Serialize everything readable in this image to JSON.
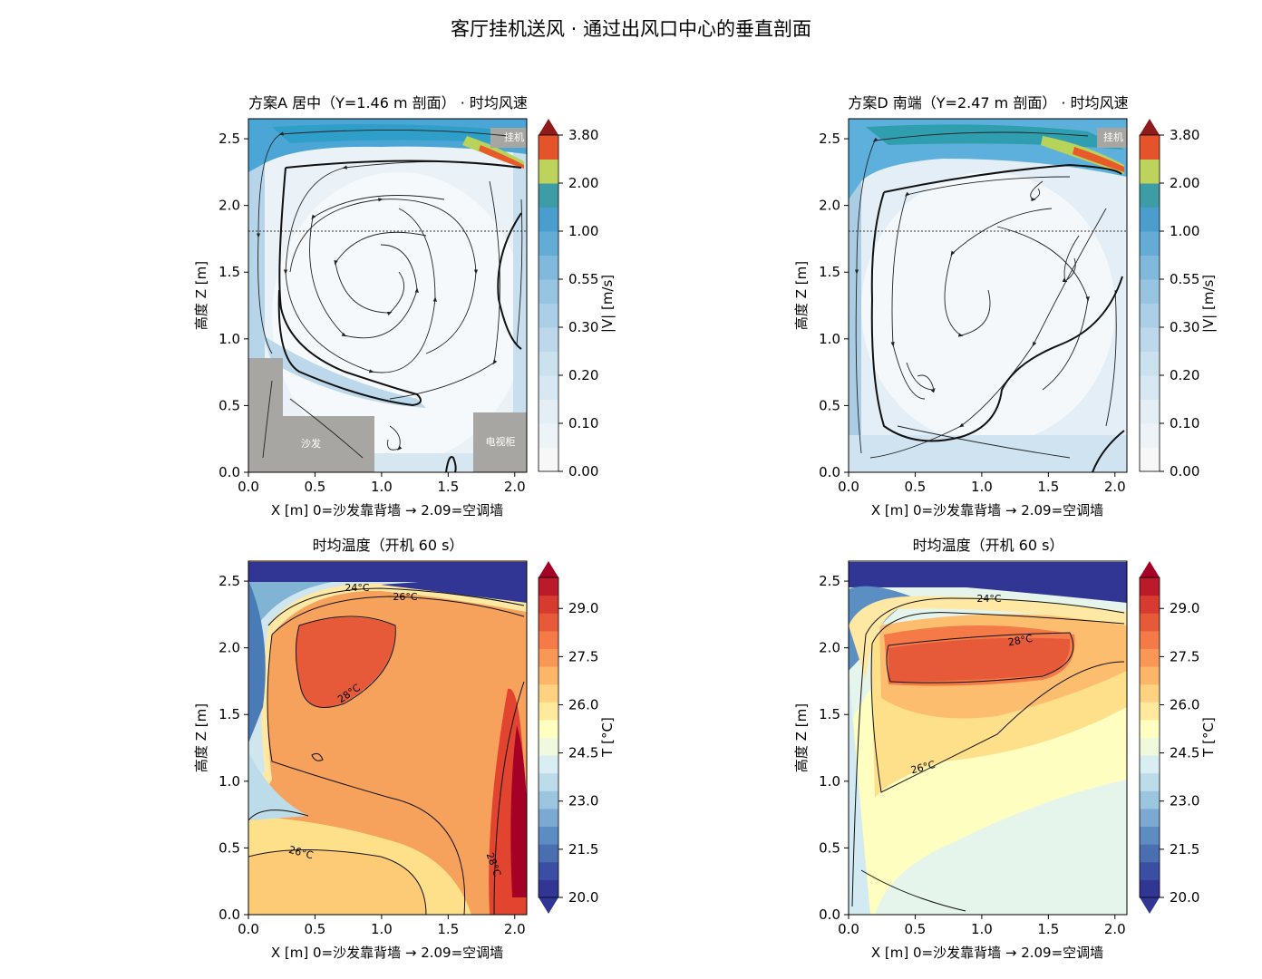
{
  "figure": {
    "suptitle": "客厅挂机送风 · 通过出风口中心的垂直剖面"
  },
  "chart_data": [
    {
      "type": "heatmap",
      "title": "方案A 居中（Y=1.46 m 剖面） · 时均风速",
      "xlabel": "X [m]  0=沙发靠背墙 → 2.09=空调墙",
      "ylabel": "高度 Z [m]",
      "xlim": [
        0,
        2.09
      ],
      "ylim": [
        0,
        2.65
      ],
      "xticks": [
        "0.0",
        "0.5",
        "1.0",
        "1.5",
        "2.0"
      ],
      "yticks": [
        "0.0",
        "0.5",
        "1.0",
        "1.5",
        "2.0",
        "2.5"
      ],
      "colorbar": {
        "label": "|V| [m/s]",
        "ticks": [
          "0.00",
          "0.10",
          "0.20",
          "0.30",
          "0.55",
          "1.00",
          "2.00",
          "3.80"
        ],
        "extend": "max"
      },
      "reference_line_z": 1.8,
      "annotations": [
        "挂机",
        "沙发",
        "电视柜"
      ],
      "streamlines": true
    },
    {
      "type": "heatmap",
      "title": "方案D 南端（Y=2.47 m 剖面） · 时均风速",
      "xlabel": "X [m]  0=沙发靠背墙 → 2.09=空调墙",
      "ylabel": "高度 Z [m]",
      "xlim": [
        0,
        2.09
      ],
      "ylim": [
        0,
        2.65
      ],
      "xticks": [
        "0.0",
        "0.5",
        "1.0",
        "1.5",
        "2.0"
      ],
      "yticks": [
        "0.0",
        "0.5",
        "1.0",
        "1.5",
        "2.0",
        "2.5"
      ],
      "colorbar": {
        "label": "|V| [m/s]",
        "ticks": [
          "0.00",
          "0.10",
          "0.20",
          "0.30",
          "0.55",
          "1.00",
          "2.00",
          "3.80"
        ],
        "extend": "max"
      },
      "reference_line_z": 1.8,
      "annotations": [
        "挂机"
      ],
      "streamlines": true
    },
    {
      "type": "heatmap",
      "title": "时均温度（开机 60 s）",
      "xlabel": "X [m]  0=沙发靠背墙 → 2.09=空调墙",
      "ylabel": "高度 Z [m]",
      "xlim": [
        0,
        2.09
      ],
      "ylim": [
        0,
        2.65
      ],
      "xticks": [
        "0.0",
        "0.5",
        "1.0",
        "1.5",
        "2.0"
      ],
      "yticks": [
        "0.0",
        "0.5",
        "1.0",
        "1.5",
        "2.0",
        "2.5"
      ],
      "colorbar": {
        "label": "T [°C]",
        "ticks": [
          "20.0",
          "21.5",
          "23.0",
          "24.5",
          "26.0",
          "27.5",
          "29.0"
        ],
        "extend": "both"
      },
      "contour_labels": [
        "24°C",
        "26°C",
        "28°C",
        "26°C",
        "28°C"
      ]
    },
    {
      "type": "heatmap",
      "title": "时均温度（开机 60 s）",
      "xlabel": "X [m]  0=沙发靠背墙 → 2.09=空调墙",
      "ylabel": "高度 Z [m]",
      "xlim": [
        0,
        2.09
      ],
      "ylim": [
        0,
        2.65
      ],
      "xticks": [
        "0.0",
        "0.5",
        "1.0",
        "1.5",
        "2.0"
      ],
      "yticks": [
        "0.0",
        "0.5",
        "1.0",
        "1.5",
        "2.0",
        "2.5"
      ],
      "colorbar": {
        "label": "T [°C]",
        "ticks": [
          "20.0",
          "21.5",
          "23.0",
          "24.5",
          "26.0",
          "27.5",
          "29.0"
        ],
        "extend": "both"
      },
      "contour_labels": [
        "24°C",
        "28°C",
        "26°C"
      ]
    }
  ]
}
